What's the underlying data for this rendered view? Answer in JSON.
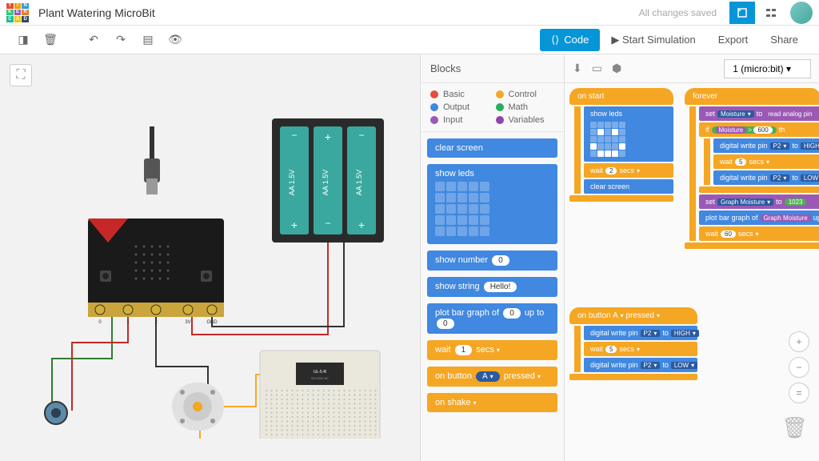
{
  "header": {
    "title": "Plant Watering MicroBit",
    "saved": "All changes saved"
  },
  "logo_colors": [
    "#e74c3c",
    "#f39c12",
    "#3498db",
    "#2ecc71",
    "#9b59b6",
    "#e67e22",
    "#1abc9c",
    "#f1c40f",
    "#34495e"
  ],
  "logo_letters": [
    "T",
    "I",
    "N",
    "K",
    "E",
    "R",
    "C",
    "A",
    "D"
  ],
  "toolbar": {
    "code": "Code",
    "simulate": "Start Simulation",
    "export": "Export",
    "share": "Share"
  },
  "palette": {
    "title": "Blocks",
    "categories": [
      {
        "label": "Basic",
        "color": "#e74c3c"
      },
      {
        "label": "Control",
        "color": "#f5a623"
      },
      {
        "label": "Output",
        "color": "#4088e0"
      },
      {
        "label": "Math",
        "color": "#27ae60"
      },
      {
        "label": "Input",
        "color": "#9b59b6"
      },
      {
        "label": "Variables",
        "color": "#8e44ad"
      }
    ],
    "blocks": {
      "clear_screen": "clear screen",
      "show_leds": "show leds",
      "show_number": "show number",
      "show_number_val": "0",
      "show_string": "show string",
      "show_string_val": "Hello!",
      "plot_bar": "plot bar graph of",
      "plot_bar_v1": "0",
      "plot_bar_upto": "up to",
      "plot_bar_v2": "0",
      "wait": "wait",
      "wait_val": "1",
      "wait_unit": "secs",
      "on_button": "on button",
      "on_button_a": "A",
      "on_button_pressed": "pressed",
      "on": "on",
      "shake": "shake"
    }
  },
  "workspace": {
    "device": "1 (micro:bit)",
    "stacks": {
      "onstart": {
        "hat": "on start",
        "show_leds": "show leds",
        "led_pattern": [
          0,
          0,
          0,
          0,
          0,
          0,
          1,
          0,
          1,
          0,
          0,
          0,
          0,
          0,
          0,
          1,
          0,
          0,
          0,
          1,
          0,
          1,
          1,
          1,
          0
        ],
        "wait": "wait",
        "wait_val": "2",
        "wait_unit": "secs",
        "clear": "clear screen"
      },
      "onbutton": {
        "hat": "on button",
        "btn": "A",
        "pressed": "pressed",
        "dw1": "digital write pin",
        "pin": "P2",
        "to": "to",
        "high": "HIGH",
        "wait": "wait",
        "wait_val": "5",
        "wait_unit": "secs",
        "dw2": "digital write pin",
        "low": "LOW"
      },
      "forever": {
        "hat": "forever",
        "set": "set",
        "moisture": "Moisture",
        "to": "to",
        "read": "read analog pin",
        "if": "if",
        "gt": ">",
        "thresh": "600",
        "dw": "digital write pin",
        "pin": "P2",
        "high": "HIGH",
        "low": "LOW",
        "wait5": "wait",
        "w5": "5",
        "secs": "secs",
        "set2": "set",
        "graph": "Graph Moisture",
        "v1023": "1023",
        "plot": "plot bar graph of",
        "upto": "up",
        "wait60": "wait",
        "w60": "60"
      }
    }
  }
}
